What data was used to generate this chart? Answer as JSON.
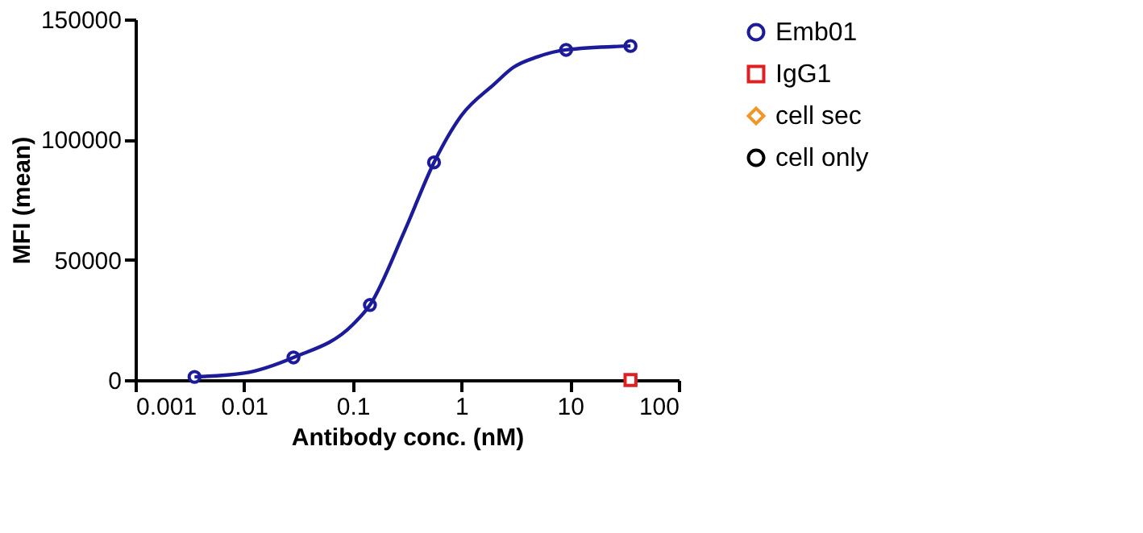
{
  "chart_data": {
    "type": "scatter",
    "xlabel": "Antibody conc. (nM)",
    "ylabel": "MFI (mean)",
    "log": "x",
    "xlim": [
      0.001,
      100
    ],
    "xticks": [
      0.001,
      0.01,
      0.1,
      1,
      10,
      100
    ],
    "ylim": [
      0,
      150000
    ],
    "yticks": [
      0,
      50000,
      100000,
      150000
    ],
    "grid": false,
    "legend": "right",
    "series": [
      {
        "name": "Emb01",
        "marker": "circle",
        "color": "#1c1c9a",
        "x": [
          0.0035,
          0.0285,
          0.144,
          0.56,
          9.2,
          36
        ],
        "values": [
          1300,
          9400,
          31200,
          90500,
          137300,
          138900
        ]
      },
      {
        "type": "line",
        "color": "#1c1c9a",
        "x": [
          0.0035,
          0.01,
          0.0285,
          0.1,
          0.144,
          0.3,
          0.56,
          1,
          2,
          3,
          5,
          9.2,
          36
        ],
        "values": [
          1300,
          2900,
          9400,
          23000,
          31200,
          62000,
          90500,
          110000,
          123000,
          130000,
          134400,
          137300,
          138900
        ]
      },
      {
        "name": "IgG1",
        "marker": "square",
        "color": "#e02020",
        "x": [
          36
        ],
        "values": [
          0
        ]
      },
      {
        "name": "cell sec",
        "marker": "diamond",
        "color": "#f0962a"
      },
      {
        "name": "cell only",
        "marker": "circle",
        "color": "#000000"
      }
    ]
  }
}
